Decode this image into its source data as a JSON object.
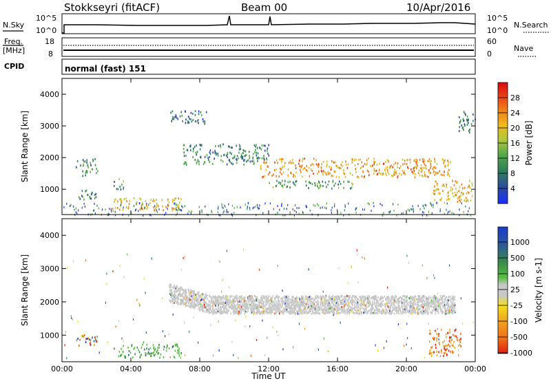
{
  "header": {
    "station": "Stokkseyri (fitACF)",
    "beam": "Beam 00",
    "date": "10/Apr/2016"
  },
  "strips": {
    "nsky_label": "N.Sky",
    "nsky_top": "10^5",
    "nsky_bottom": "10^0",
    "nsearch_label": "N.Search",
    "nsearch_top": "10^5",
    "nsearch_bottom": "10^0",
    "freq_label": "Freq.",
    "freq_unit": "[MHz]",
    "freq_top": "18",
    "freq_bottom": "8",
    "nave_label": "Nave",
    "nave_top": "60",
    "nave_bottom": "0",
    "cpid_label": "CPID",
    "cpid_value": "normal (fast) 151"
  },
  "chart_data": [
    {
      "type": "heatmap",
      "panel": "power",
      "ylabel": "Slant Range [km]",
      "yticks": [
        "1000",
        "2000",
        "3000",
        "4000"
      ],
      "ylim": [
        200,
        4500
      ],
      "xlim": [
        0,
        24
      ],
      "colorbar_label": "Power [dB]",
      "colorbar_ticks": [
        "4",
        "8",
        "12",
        "16",
        "20",
        "24",
        "28"
      ],
      "colorbar_colors": [
        "#1a30ff",
        "#2a4aa0",
        "#2f7f5a",
        "#52a84a",
        "#b0c83a",
        "#f0b81e",
        "#f07a18",
        "#e83818",
        "#d80a0a"
      ],
      "features": [
        {
          "t": [
            0.8,
            2.0
          ],
          "r": [
            1700,
            2000
          ],
          "level": 8
        },
        {
          "t": [
            1.1,
            2.1
          ],
          "r": [
            1450,
            1700
          ],
          "level": 10
        },
        {
          "t": [
            3.0,
            3.6
          ],
          "r": [
            1000,
            1350
          ],
          "level": 10
        },
        {
          "t": [
            0.9,
            2.0
          ],
          "r": [
            700,
            1050
          ],
          "level": 9
        },
        {
          "t": [
            2.9,
            6.9
          ],
          "r": [
            350,
            750
          ],
          "level": 20
        },
        {
          "t": [
            7.0,
            12.0
          ],
          "r": [
            1800,
            2450
          ],
          "level": 9
        },
        {
          "t": [
            11.5,
            22.6
          ],
          "r": [
            1400,
            2000
          ],
          "level": 22
        },
        {
          "t": [
            12.0,
            17.0
          ],
          "r": [
            1050,
            1300
          ],
          "level": 10
        },
        {
          "t": [
            21.5,
            23.8
          ],
          "r": [
            600,
            1300
          ],
          "level": 20
        },
        {
          "t": [
            23.0,
            24.0
          ],
          "r": [
            2800,
            3500
          ],
          "level": 8
        },
        {
          "t": [
            6.2,
            8.4
          ],
          "r": [
            3100,
            3500
          ],
          "level": 6
        }
      ]
    },
    {
      "type": "heatmap",
      "panel": "velocity",
      "ylabel": "Slant Range [km]",
      "xlabel": "Time UT",
      "xticks": [
        "00:00",
        "04:00",
        "08:00",
        "12:00",
        "16:00",
        "20:00",
        "00:00"
      ],
      "yticks": [
        "1000",
        "2000",
        "3000",
        "4000"
      ],
      "ylim": [
        200,
        4500
      ],
      "xlim": [
        0,
        24
      ],
      "colorbar_label": "Velocity [m s-1]",
      "colorbar_ticks": [
        "1000",
        "500",
        "100",
        "25",
        "-25",
        "-100",
        "-500",
        "-1000"
      ],
      "colorbar_colors": [
        "#1a3acc",
        "#2a5a9a",
        "#3a8a4a",
        "#58c040",
        "#c8c8c8",
        "#f2e01a",
        "#f0a020",
        "#f07018",
        "#e02010"
      ],
      "features": [
        {
          "t": [
            0.8,
            2.0
          ],
          "r": [
            700,
            1050
          ],
          "class": "mixed"
        },
        {
          "t": [
            3.0,
            6.9
          ],
          "r": [
            350,
            750
          ],
          "class": "green"
        },
        {
          "t": [
            6.2,
            22.8
          ],
          "r": [
            1400,
            2600
          ],
          "class": "gray"
        },
        {
          "t": [
            21.3,
            23.2
          ],
          "r": [
            400,
            1200
          ],
          "class": "orange"
        }
      ]
    }
  ]
}
